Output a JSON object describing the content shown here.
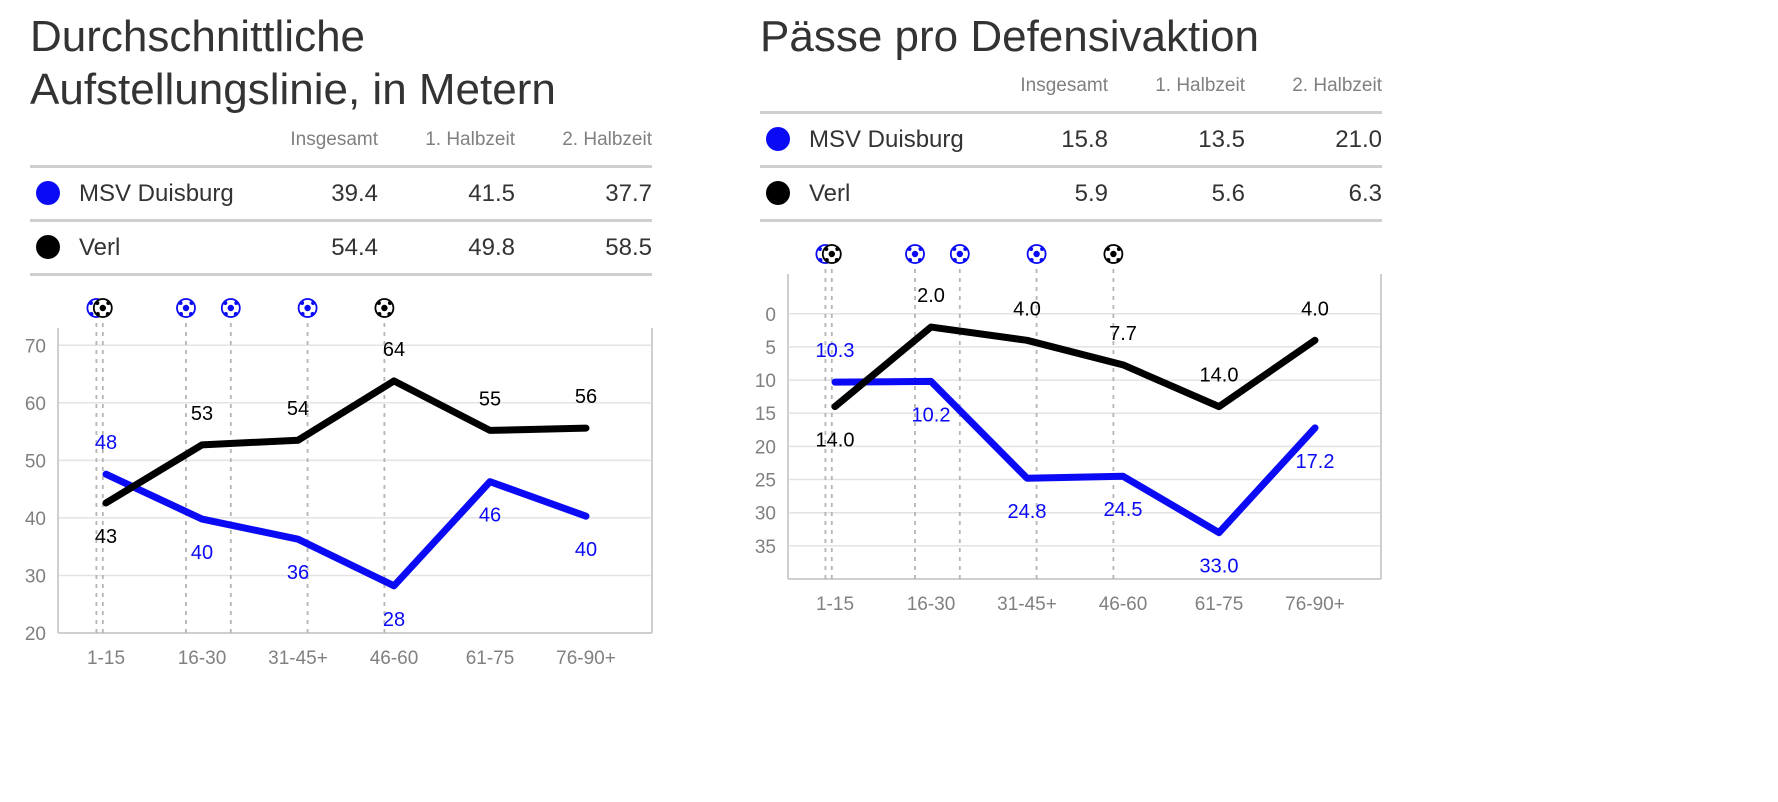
{
  "colors": {
    "MSV Duisburg": "#0a0af5",
    "Verl": "#000000"
  },
  "panels": [
    {
      "title_line1": "Durchschnittliche",
      "title_line2": "Aufstellungslinie, in Metern",
      "columns": [
        "Insgesamt",
        "1. Halbzeit",
        "2. Halbzeit"
      ],
      "rows": [
        {
          "team": "MSV Duisburg",
          "values": [
            "39.4",
            "41.5",
            "37.7"
          ]
        },
        {
          "team": "Verl",
          "values": [
            "54.4",
            "49.8",
            "58.5"
          ]
        }
      ]
    },
    {
      "title_line1": "Pässe pro Defensivaktion",
      "title_line2": "",
      "columns": [
        "Insgesamt",
        "1. Halbzeit",
        "2. Halbzeit"
      ],
      "rows": [
        {
          "team": "MSV Duisburg",
          "values": [
            "15.8",
            "13.5",
            "21.0"
          ]
        },
        {
          "team": "Verl",
          "values": [
            "5.9",
            "5.6",
            "6.3"
          ]
        }
      ]
    }
  ],
  "chart_data": [
    {
      "type": "line",
      "categories": [
        "1-15",
        "16-30",
        "31-45+",
        "46-60",
        "61-75",
        "76-90+"
      ],
      "ylim": [
        20,
        73
      ],
      "yticks": [
        20,
        30,
        40,
        50,
        60,
        70
      ],
      "inverted": false,
      "grid": true,
      "series": [
        {
          "name": "MSV Duisburg",
          "values": [
            47.6,
            39.8,
            36.3,
            28.2,
            46.3,
            40.3
          ],
          "labels": [
            "48",
            "40",
            "36",
            "28",
            "46",
            "40"
          ]
        },
        {
          "name": "Verl",
          "values": [
            42.6,
            52.7,
            53.5,
            63.8,
            55.2,
            55.6
          ],
          "labels": [
            "43",
            "53",
            "54",
            "64",
            "55",
            "56"
          ]
        }
      ],
      "goals": [
        {
          "minute": 6,
          "team": "MSV Duisburg"
        },
        {
          "minute": 7,
          "team": "Verl"
        },
        {
          "minute": 20,
          "team": "MSV Duisburg"
        },
        {
          "minute": 27,
          "team": "MSV Duisburg"
        },
        {
          "minute": 39,
          "team": "MSV Duisburg"
        },
        {
          "minute": 51,
          "team": "Verl"
        }
      ]
    },
    {
      "type": "line",
      "categories": [
        "1-15",
        "16-30",
        "31-45+",
        "46-60",
        "61-75",
        "76-90+"
      ],
      "ylim": [
        -6,
        40
      ],
      "yticks": [
        0,
        5,
        10,
        15,
        20,
        25,
        30,
        35
      ],
      "inverted": true,
      "grid": true,
      "series": [
        {
          "name": "MSV Duisburg",
          "values": [
            10.3,
            10.2,
            24.8,
            24.5,
            33.0,
            17.2
          ],
          "labels": [
            "10.3",
            "10.2",
            "24.8",
            "24.5",
            "33.0",
            "17.2"
          ]
        },
        {
          "name": "Verl",
          "values": [
            14.0,
            2.0,
            4.0,
            7.7,
            14.0,
            4.0
          ],
          "labels": [
            "14.0",
            "2.0",
            "4.0",
            "7.7",
            "14.0",
            "4.0"
          ]
        }
      ],
      "goals": [
        {
          "minute": 6,
          "team": "MSV Duisburg"
        },
        {
          "minute": 7,
          "team": "Verl"
        },
        {
          "minute": 20,
          "team": "MSV Duisburg"
        },
        {
          "minute": 27,
          "team": "MSV Duisburg"
        },
        {
          "minute": 39,
          "team": "MSV Duisburg"
        },
        {
          "minute": 51,
          "team": "Verl"
        }
      ]
    }
  ]
}
